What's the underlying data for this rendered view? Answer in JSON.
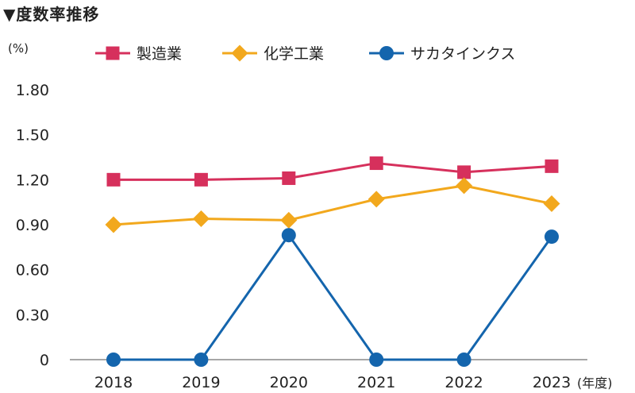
{
  "heading": "▼度数率推移",
  "y_unit": "(%)",
  "x_unit": "(年度)",
  "chart_data": {
    "type": "line",
    "title": "▼度数率推移",
    "ylabel": "(%)",
    "xlabel": "(年度)",
    "categories": [
      "2018",
      "2019",
      "2020",
      "2021",
      "2022",
      "2023"
    ],
    "yticks": [
      "0",
      "0.30",
      "0.60",
      "0.90",
      "1.20",
      "1.50",
      "1.80"
    ],
    "ylim": [
      0,
      1.8
    ],
    "legend_position": "top",
    "grid": false,
    "series": [
      {
        "name": "製造業",
        "values": [
          1.2,
          1.2,
          1.21,
          1.31,
          1.25,
          1.29
        ],
        "color": "#d6305c",
        "marker": "square"
      },
      {
        "name": "化学工業",
        "values": [
          0.9,
          0.94,
          0.93,
          1.07,
          1.16,
          1.04
        ],
        "color": "#f2a81d",
        "marker": "diamond"
      },
      {
        "name": "サカタインクス",
        "values": [
          0,
          0,
          0.83,
          0,
          0,
          0.82
        ],
        "color": "#1465ad",
        "marker": "circle"
      }
    ]
  }
}
